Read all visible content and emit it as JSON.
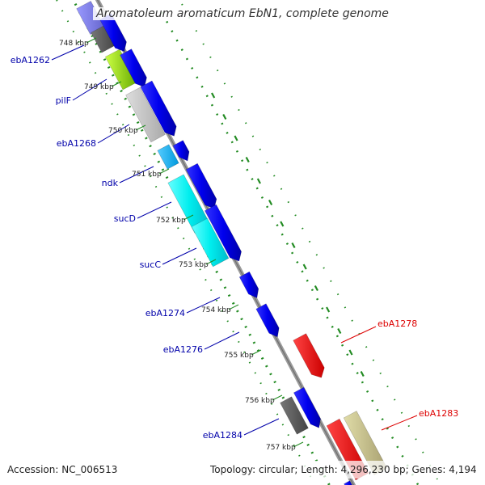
{
  "title": "Aromatoleum aromaticum EbN1, complete genome",
  "footer": {
    "accession": "Accession: NC_006513",
    "topology": "Topology: circular; Length: 4,296,230 bp; Genes: 4,194"
  },
  "colors": {
    "backbone": "#808080",
    "tick": "#228b22",
    "gene_default": "#0000ee",
    "gene_highlight": "#ee0000",
    "label_blue": "#0000aa",
    "label_red": "#dd0000"
  },
  "position_labels": [
    "748 kbp",
    "749 kbp",
    "750 kbp",
    "751 kbp",
    "752 kbp",
    "753 kbp",
    "754 kbp",
    "755 kbp",
    "756 kbp",
    "757 kbp"
  ],
  "gene_labels": [
    {
      "name": "ebA1262",
      "color": "blue"
    },
    {
      "name": "pilF",
      "color": "blue"
    },
    {
      "name": "ebA1268",
      "color": "blue"
    },
    {
      "name": "ndk",
      "color": "blue"
    },
    {
      "name": "sucD",
      "color": "blue"
    },
    {
      "name": "sucC",
      "color": "blue"
    },
    {
      "name": "ebA1274",
      "color": "blue"
    },
    {
      "name": "ebA1276",
      "color": "blue"
    },
    {
      "name": "ebA1284",
      "color": "blue"
    },
    {
      "name": "ebA1278",
      "color": "red"
    },
    {
      "name": "ebA1283",
      "color": "red"
    }
  ]
}
